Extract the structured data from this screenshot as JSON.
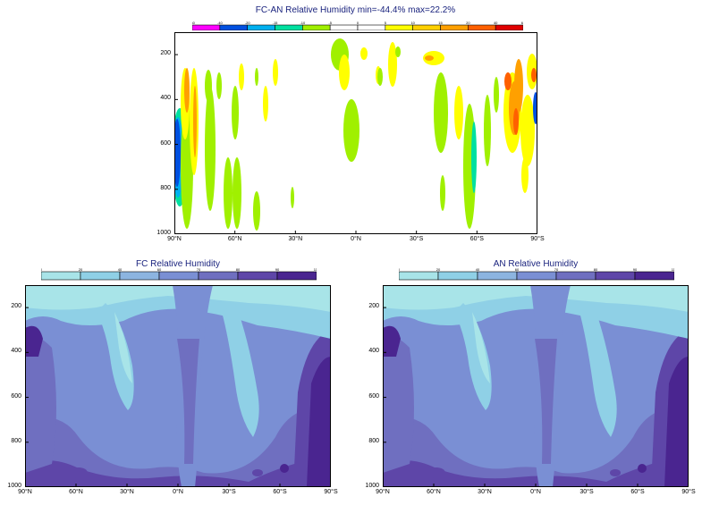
{
  "chart_data": [
    {
      "id": "diff",
      "type": "heatmap",
      "title": "FC-AN Relative Humidity min=-44.4% max=22.2%",
      "x_ticks": [
        "90°N",
        "60°N",
        "30°N",
        "0°N",
        "30°S",
        "60°S",
        "90°S"
      ],
      "x_range": [
        90,
        -90
      ],
      "y_ticks": [
        "200",
        "400",
        "600",
        "800",
        "1000"
      ],
      "y_range": [
        100,
        1000
      ],
      "y_inverted": true,
      "colorbar_ticks": [
        "-60",
        "-40",
        "-20",
        "-15",
        "-10",
        "-5",
        "0",
        "5",
        "10",
        "15",
        "20",
        "40",
        "60"
      ],
      "colorbar_colors": [
        "#ff00ff",
        "#0050e0",
        "#00b0f0",
        "#00e0a0",
        "#a0f000",
        "#ffffff",
        "#ffffff",
        "#ffff00",
        "#ffd000",
        "#ffa000",
        "#ff6000",
        "#e00000"
      ],
      "features": [
        {
          "lat": 86,
          "p": 560,
          "value": -40
        },
        {
          "lat": 80,
          "p": 300,
          "value": 15
        },
        {
          "lat": 70,
          "p": 580,
          "value": -8
        },
        {
          "lat": 5,
          "p": 200,
          "value": -8
        },
        {
          "lat": 35,
          "p": 380,
          "value": 8
        },
        {
          "lat": -65,
          "p": 280,
          "value": 8
        },
        {
          "lat": -80,
          "p": 320,
          "value": 15
        },
        {
          "lat": -88,
          "p": 420,
          "value": -30
        }
      ]
    },
    {
      "id": "fc",
      "type": "heatmap",
      "title": "FC Relative Humidity",
      "x_ticks": [
        "90°N",
        "60°N",
        "30°N",
        "0°N",
        "30°S",
        "60°S",
        "90°S"
      ],
      "x_range": [
        90,
        -90
      ],
      "y_ticks": [
        "200",
        "400",
        "600",
        "800",
        "1000"
      ],
      "y_range": [
        100,
        1000
      ],
      "y_inverted": true,
      "colorbar_ticks": [
        "0",
        "20",
        "40",
        "60",
        "70",
        "80",
        "90",
        "110"
      ],
      "colorbar_colors": [
        "#a8e4e8",
        "#8fd0e6",
        "#8cb4e0",
        "#7a8fd4",
        "#6f6fc0",
        "#5e46a8",
        "#4a2590"
      ]
    },
    {
      "id": "an",
      "type": "heatmap",
      "title": "AN Relative Humidity",
      "x_ticks": [
        "90°N",
        "60°N",
        "30°N",
        "0°N",
        "30°S",
        "60°S",
        "90°S"
      ],
      "x_range": [
        90,
        -90
      ],
      "y_ticks": [
        "200",
        "400",
        "600",
        "800",
        "1000"
      ],
      "y_range": [
        100,
        1000
      ],
      "y_inverted": true,
      "colorbar_ticks": [
        "0",
        "20",
        "40",
        "60",
        "70",
        "80",
        "90",
        "110"
      ],
      "colorbar_colors": [
        "#a8e4e8",
        "#8fd0e6",
        "#8cb4e0",
        "#7a8fd4",
        "#6f6fc0",
        "#5e46a8",
        "#4a2590"
      ]
    }
  ]
}
